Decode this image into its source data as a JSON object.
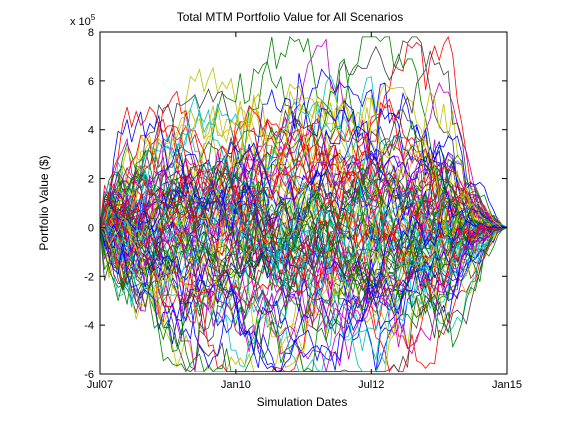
{
  "chart_data": {
    "type": "line",
    "title": "Total MTM Portfolio Value for All Scenarios",
    "xlabel": "Simulation Dates",
    "ylabel": "Portfolio Value ($)",
    "y_exponent_label": "x 10",
    "y_exponent_power": "5",
    "xlim": [
      "2007-07-01",
      "2015-01-01"
    ],
    "ylim": [
      -600000,
      800000
    ],
    "x_ticks": [
      {
        "date": "2007-07-01",
        "label": "Jul07"
      },
      {
        "date": "2010-01-01",
        "label": "Jan10"
      },
      {
        "date": "2012-07-01",
        "label": "Jul12"
      },
      {
        "date": "2015-01-01",
        "label": "Jan15"
      }
    ],
    "y_ticks": [
      {
        "value": -600000,
        "label": "-6"
      },
      {
        "value": -400000,
        "label": "-4"
      },
      {
        "value": -200000,
        "label": "-2"
      },
      {
        "value": 0,
        "label": "0"
      },
      {
        "value": 200000,
        "label": "2"
      },
      {
        "value": 400000,
        "label": "4"
      },
      {
        "value": 600000,
        "label": "6"
      },
      {
        "value": 800000,
        "label": "8"
      }
    ],
    "grid": false,
    "legend": "none",
    "n_scenarios": 100,
    "n_dates": 91,
    "series_colors": [
      "#0000ff",
      "#008000",
      "#ff0000",
      "#00bfbf",
      "#bf00bf",
      "#bfbf00",
      "#404040"
    ],
    "envelope": {
      "max": 780000,
      "min": -590000,
      "end_value": 0
    }
  }
}
